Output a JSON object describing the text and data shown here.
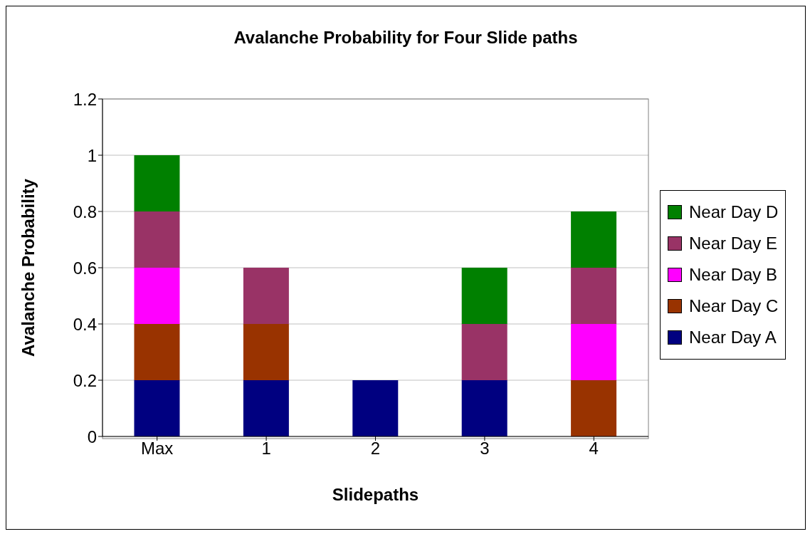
{
  "chart_data": {
    "type": "bar",
    "title": "Avalanche Probability for Four Slide paths",
    "xlabel": "Slidepaths",
    "ylabel": "Avalanche Probability",
    "categories": [
      "Max",
      "1",
      "2",
      "3",
      "4"
    ],
    "stacked": true,
    "series": [
      {
        "name": "Near Day A",
        "color": "#000080",
        "values": [
          0.2,
          0.2,
          0.2,
          0.2,
          null
        ]
      },
      {
        "name": "Near Day C",
        "color": "#993300",
        "values": [
          0.2,
          0.2,
          null,
          null,
          0.2
        ]
      },
      {
        "name": "Near Day B",
        "color": "#ff00ff",
        "values": [
          0.2,
          null,
          null,
          null,
          0.2
        ]
      },
      {
        "name": "Near Day E",
        "color": "#993366",
        "values": [
          0.2,
          0.2,
          null,
          0.2,
          0.2
        ]
      },
      {
        "name": "Near Day D",
        "color": "#008000",
        "values": [
          0.2,
          null,
          null,
          0.2,
          0.2
        ]
      }
    ],
    "ylim": [
      0,
      1.2
    ],
    "yticks": [
      0,
      0.2,
      0.4,
      0.6,
      0.8,
      1,
      1.2
    ],
    "grid": "y",
    "legend": "right"
  }
}
